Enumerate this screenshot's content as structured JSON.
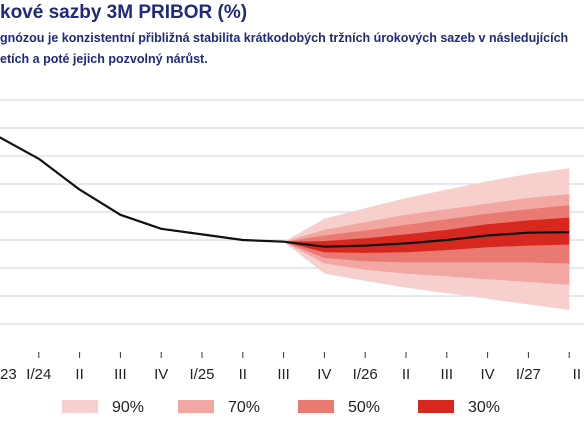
{
  "title": "kové sazby 3M PRIBOR (%)",
  "subtitle": "gnózou je konzistentní přibližná stabilita krátkodobých tržních úrokových sazeb v následujících\netích a poté jejich pozvolný nárůst.",
  "chart_data": {
    "type": "line",
    "title": "kové sazby 3M PRIBOR (%)",
    "categories": [
      "23",
      "I/24",
      "II",
      "III",
      "IV",
      "I/25",
      "II",
      "III",
      "IV",
      "I/26",
      "II",
      "III",
      "IV",
      "I/27",
      "II"
    ],
    "series": [
      {
        "values": [
          6.35,
          5.95,
          5.4,
          4.95,
          4.7,
          4.6,
          4.5,
          4.47,
          4.38,
          4.4,
          4.44,
          4.5,
          4.58,
          4.63,
          4.64
        ]
      }
    ],
    "fan": {
      "start_index": 7,
      "center": [
        4.47,
        4.38,
        4.4,
        4.44,
        4.5,
        4.58,
        4.63,
        4.64
      ],
      "bands": [
        {
          "label": "90%",
          "color": "#f7d0ce",
          "lower": [
            4.47,
            3.9,
            3.77,
            3.65,
            3.55,
            3.45,
            3.35,
            3.25
          ],
          "upper": [
            4.47,
            4.88,
            5.07,
            5.25,
            5.4,
            5.55,
            5.68,
            5.78
          ]
        },
        {
          "label": "70%",
          "color": "#f2a7a2",
          "lower": [
            4.47,
            4.08,
            3.97,
            3.9,
            3.85,
            3.8,
            3.75,
            3.7
          ],
          "upper": [
            4.47,
            4.68,
            4.82,
            4.95,
            5.05,
            5.15,
            5.25,
            5.32
          ]
        },
        {
          "label": "50%",
          "color": "#e97a72",
          "lower": [
            4.47,
            4.18,
            4.12,
            4.1,
            4.1,
            4.1,
            4.1,
            4.08
          ],
          "upper": [
            4.47,
            4.58,
            4.67,
            4.77,
            4.87,
            4.97,
            5.05,
            5.12
          ]
        },
        {
          "label": "30%",
          "color": "#d7281f",
          "lower": [
            4.47,
            4.28,
            4.27,
            4.28,
            4.32,
            4.37,
            4.4,
            4.42
          ],
          "upper": [
            4.47,
            4.48,
            4.53,
            4.6,
            4.68,
            4.78,
            4.85,
            4.9
          ]
        }
      ]
    },
    "ylim": [
      2.5,
      7.0
    ],
    "grid": true,
    "legend_position": "bottom"
  }
}
